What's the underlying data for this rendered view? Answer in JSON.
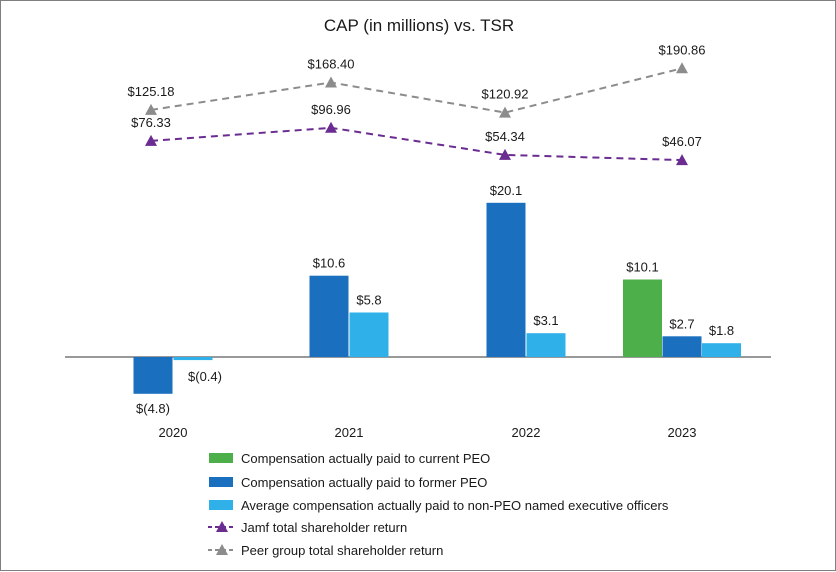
{
  "chart_data": {
    "type": "bar",
    "title": "CAP (in millions) vs. TSR",
    "categories": [
      "2020",
      "2021",
      "2022",
      "2023"
    ],
    "series": [
      {
        "name": "Compensation actually paid to current PEO",
        "color": "#4daf4a",
        "values": [
          null,
          null,
          null,
          10.1
        ],
        "labels": [
          "",
          "",
          "",
          "$10.1"
        ]
      },
      {
        "name": "Compensation actually paid to former PEO",
        "color": "#1b6fbf",
        "values": [
          -4.8,
          10.6,
          20.1,
          2.7
        ],
        "labels": [
          "$(4.8)",
          "$10.6",
          "$20.1",
          "$2.7"
        ]
      },
      {
        "name": "Average compensation actually paid to non-PEO named executive officers",
        "color": "#2fb0e8",
        "values": [
          -0.4,
          5.8,
          3.1,
          1.8
        ],
        "labels": [
          "$(0.4)",
          "$5.8",
          "$3.1",
          "$1.8"
        ]
      }
    ],
    "lines": [
      {
        "name": "Jamf total shareholder return",
        "color": "#6a2c91",
        "values": [
          76.33,
          96.96,
          54.34,
          46.07
        ],
        "labels": [
          "$76.33",
          "$96.96",
          "$54.34",
          "$46.07"
        ]
      },
      {
        "name": "Peer group total shareholder return",
        "color": "#8c8c8c",
        "values": [
          125.18,
          168.4,
          120.92,
          190.86
        ],
        "labels": [
          "$125.18",
          "$168.40",
          "$120.92",
          "$190.86"
        ]
      }
    ],
    "legend_position": "bottom",
    "grid": false
  }
}
